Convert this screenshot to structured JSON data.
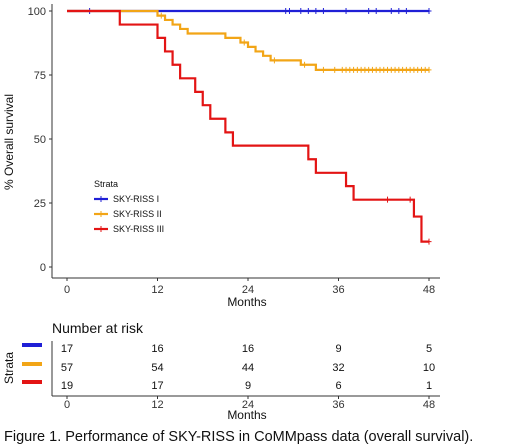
{
  "chart_data": {
    "type": "line",
    "subtype": "kaplan-meier step",
    "ylabel": "% Overall survival",
    "xlabel": "Months",
    "xlim": [
      0,
      48
    ],
    "ylim": [
      0,
      100
    ],
    "x_ticks": [
      "0",
      "12",
      "24",
      "36",
      "48"
    ],
    "y_ticks": [
      "0",
      "25",
      "50",
      "75",
      "100"
    ],
    "grid": false,
    "legend": {
      "title": "Strata",
      "placement": "inside-left",
      "entries": [
        "SKY-RISS I",
        "SKY-RISS II",
        "SKY-RISS III"
      ]
    },
    "series": [
      {
        "name": "SKY-RISS I",
        "color": "#1f1fd6",
        "steps": [
          [
            0,
            100
          ],
          [
            48,
            100
          ]
        ],
        "censored": [
          3,
          29,
          29.5,
          31,
          32,
          33,
          34,
          37,
          40,
          41,
          43,
          44,
          45,
          48
        ]
      },
      {
        "name": "SKY-RISS II",
        "color": "#f2a516",
        "steps": [
          [
            0,
            100
          ],
          [
            12,
            98.2
          ],
          [
            13,
            96.5
          ],
          [
            14,
            94.7
          ],
          [
            15,
            93
          ],
          [
            16,
            91.2
          ],
          [
            21,
            89.5
          ],
          [
            23,
            87.7
          ],
          [
            24,
            86
          ],
          [
            25,
            84.2
          ],
          [
            26,
            82.5
          ],
          [
            27,
            80.7
          ],
          [
            31,
            79
          ],
          [
            33,
            77
          ],
          [
            48,
            77
          ]
        ],
        "censored": [
          12.5,
          23.5,
          27.5,
          31.5,
          34,
          35.5,
          36.5,
          37,
          37.5,
          38,
          38.5,
          39,
          39.5,
          40,
          40.5,
          41,
          41.5,
          42,
          42.5,
          43,
          43.5,
          44,
          44.5,
          45,
          45.5,
          46,
          46.5,
          47,
          47.5,
          48
        ]
      },
      {
        "name": "SKY-RISS III",
        "color": "#e31414",
        "steps": [
          [
            0,
            100
          ],
          [
            7,
            94.7
          ],
          [
            12,
            89.5
          ],
          [
            13,
            84.2
          ],
          [
            14,
            79
          ],
          [
            15,
            73.7
          ],
          [
            17,
            68.4
          ],
          [
            18,
            63.2
          ],
          [
            19,
            57.9
          ],
          [
            21,
            52.6
          ],
          [
            22,
            47.4
          ],
          [
            32,
            42.1
          ],
          [
            33,
            36.8
          ],
          [
            37,
            31.6
          ],
          [
            38,
            26.3
          ],
          [
            46,
            19.7
          ],
          [
            47,
            9.9
          ],
          [
            48,
            9.9
          ]
        ],
        "censored": [
          42.5,
          45.5,
          48
        ]
      }
    ],
    "risk_table": {
      "title": "Number at risk",
      "ylabel": "Strata",
      "xlabel": "Months",
      "x_ticks": [
        "0",
        "12",
        "24",
        "36",
        "48"
      ],
      "times": [
        0,
        12,
        24,
        36,
        48
      ],
      "rows": [
        {
          "color": "#1f1fd6",
          "values": [
            "17",
            "16",
            "16",
            "9",
            "5"
          ]
        },
        {
          "color": "#f2a516",
          "values": [
            "57",
            "54",
            "44",
            "32",
            "10"
          ]
        },
        {
          "color": "#e31414",
          "values": [
            "19",
            "17",
            "9",
            "6",
            "1"
          ]
        }
      ]
    }
  },
  "caption": "Figure 1. Performance of SKY-RISS in CoMMpass data (overall survival)."
}
